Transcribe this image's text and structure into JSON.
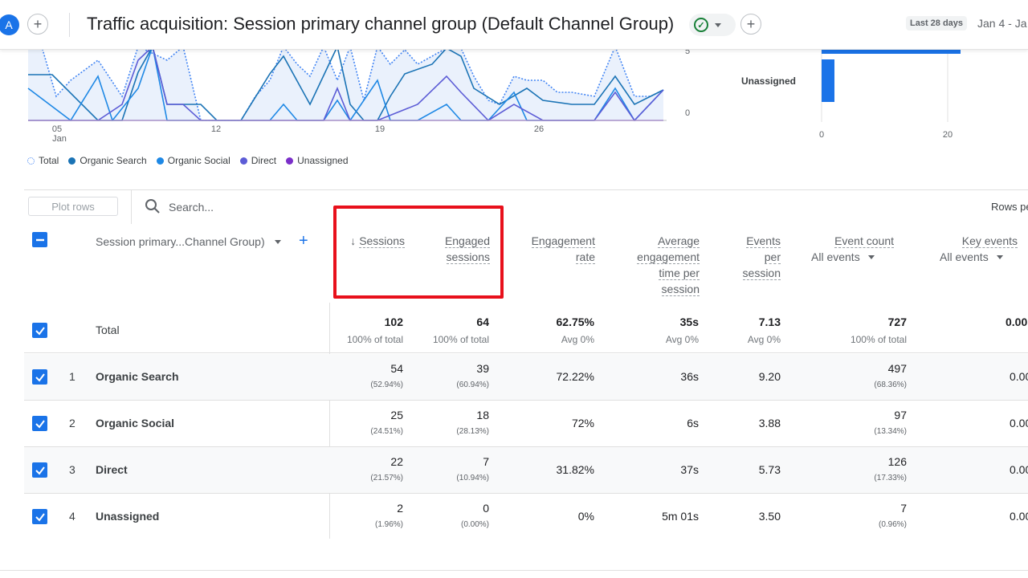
{
  "header": {
    "avatar_letter": "A",
    "title": "Traffic acquisition: Session primary channel group (Default Channel Group)",
    "date_label": "Last 28 days",
    "date_range": "Jan 4 - Ja"
  },
  "line_chart": {
    "y_ticks": [
      "5",
      "0"
    ],
    "x_ticks": [
      {
        "day": "05",
        "month": "Jan"
      },
      {
        "day": "12",
        "month": ""
      },
      {
        "day": "19",
        "month": ""
      },
      {
        "day": "26",
        "month": ""
      }
    ],
    "legend": [
      {
        "label": "Total",
        "color": "#4285f4",
        "style": "dotted"
      },
      {
        "label": "Organic Search",
        "color": "#1a73b5"
      },
      {
        "label": "Organic Social",
        "color": "#1e88e5"
      },
      {
        "label": "Direct",
        "color": "#5c5cd6"
      },
      {
        "label": "Unassigned",
        "color": "#7b2fc9"
      }
    ]
  },
  "bar_chart": {
    "category_label": "Unassigned",
    "x_ticks": [
      "0",
      "20"
    ]
  },
  "table": {
    "plot_rows_label": "Plot rows",
    "search_placeholder": "Search...",
    "rows_per_page_label": "Rows pe",
    "dimension_header": "Session primary...Channel Group)",
    "headers": {
      "sessions": "Sessions",
      "engaged_l1": "Engaged",
      "engaged_l2": "sessions",
      "engrate_l1": "Engagement",
      "engrate_l2": "rate",
      "avg_l1": "Average",
      "avg_l2": "engagement",
      "avg_l3": "time per",
      "avg_l4": "session",
      "epp_l1": "Events",
      "epp_l2": "per",
      "epp_l3": "session",
      "event_count": "Event count",
      "event_count_sub": "All events",
      "key_events": "Key events",
      "key_events_sub": "All events"
    },
    "total": {
      "label": "Total",
      "sessions": "102",
      "sessions_sub": "100% of total",
      "engaged": "64",
      "engaged_sub": "100% of total",
      "engrate": "62.75%",
      "engrate_sub": "Avg 0%",
      "avgtime": "35s",
      "avgtime_sub": "Avg 0%",
      "epp": "7.13",
      "epp_sub": "Avg 0%",
      "events": "727",
      "events_sub": "100% of total",
      "key": "0.00"
    },
    "rows": [
      {
        "index": "1",
        "label": "Organic Search",
        "sessions": "54",
        "sessions_pct": "(52.94%)",
        "engaged": "39",
        "engaged_pct": "(60.94%)",
        "engrate": "72.22%",
        "avgtime": "36s",
        "epp": "9.20",
        "events": "497",
        "events_pct": "(68.36%)",
        "key": "0.00"
      },
      {
        "index": "2",
        "label": "Organic Social",
        "sessions": "25",
        "sessions_pct": "(24.51%)",
        "engaged": "18",
        "engaged_pct": "(28.13%)",
        "engrate": "72%",
        "avgtime": "6s",
        "epp": "3.88",
        "events": "97",
        "events_pct": "(13.34%)",
        "key": "0.00"
      },
      {
        "index": "3",
        "label": "Direct",
        "sessions": "22",
        "sessions_pct": "(21.57%)",
        "engaged": "7",
        "engaged_pct": "(10.94%)",
        "engrate": "31.82%",
        "avgtime": "37s",
        "epp": "5.73",
        "events": "126",
        "events_pct": "(17.33%)",
        "key": "0.00"
      },
      {
        "index": "4",
        "label": "Unassigned",
        "sessions": "2",
        "sessions_pct": "(1.96%)",
        "engaged": "0",
        "engaged_pct": "(0.00%)",
        "engrate": "0%",
        "avgtime": "5m 01s",
        "epp": "3.50",
        "events": "7",
        "events_pct": "(0.96%)",
        "key": "0.00"
      }
    ]
  },
  "colors": {
    "accent": "#1a73e8",
    "highlight": "#e8101b",
    "status_ok": "#188038"
  }
}
